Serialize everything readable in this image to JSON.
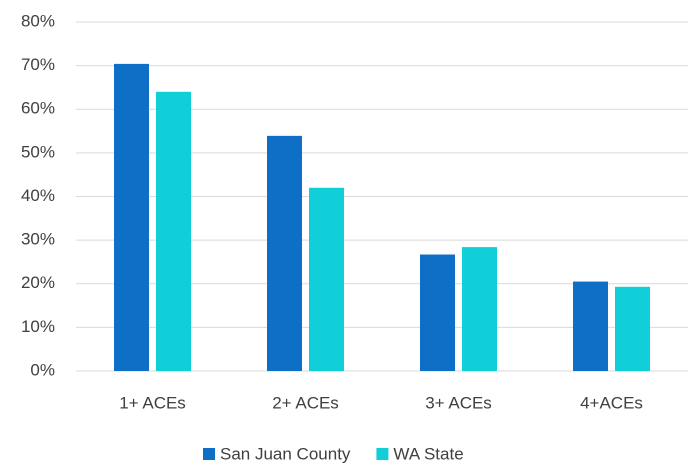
{
  "chart_data": {
    "type": "bar",
    "categories": [
      "1+ ACEs",
      "2+ ACEs",
      "3+ ACEs",
      "4+ACEs"
    ],
    "series": [
      {
        "name": "San Juan County",
        "color": "#0f6fc6",
        "values": [
          70.4,
          53.9,
          26.7,
          20.5
        ]
      },
      {
        "name": "WA State",
        "color": "#10cfd9",
        "values": [
          64.0,
          42.0,
          28.4,
          19.3
        ]
      }
    ],
    "ylim": [
      0,
      80
    ],
    "yticks": [
      {
        "value": 0,
        "label": "0%"
      },
      {
        "value": 10,
        "label": "10%"
      },
      {
        "value": 20,
        "label": "20%"
      },
      {
        "value": 30,
        "label": "30%"
      },
      {
        "value": 40,
        "label": "40%"
      },
      {
        "value": 50,
        "label": "50%"
      },
      {
        "value": 60,
        "label": "60%"
      },
      {
        "value": 70,
        "label": "70%"
      },
      {
        "value": 80,
        "label": "80%"
      }
    ],
    "grid": true,
    "legend": "bottom"
  }
}
